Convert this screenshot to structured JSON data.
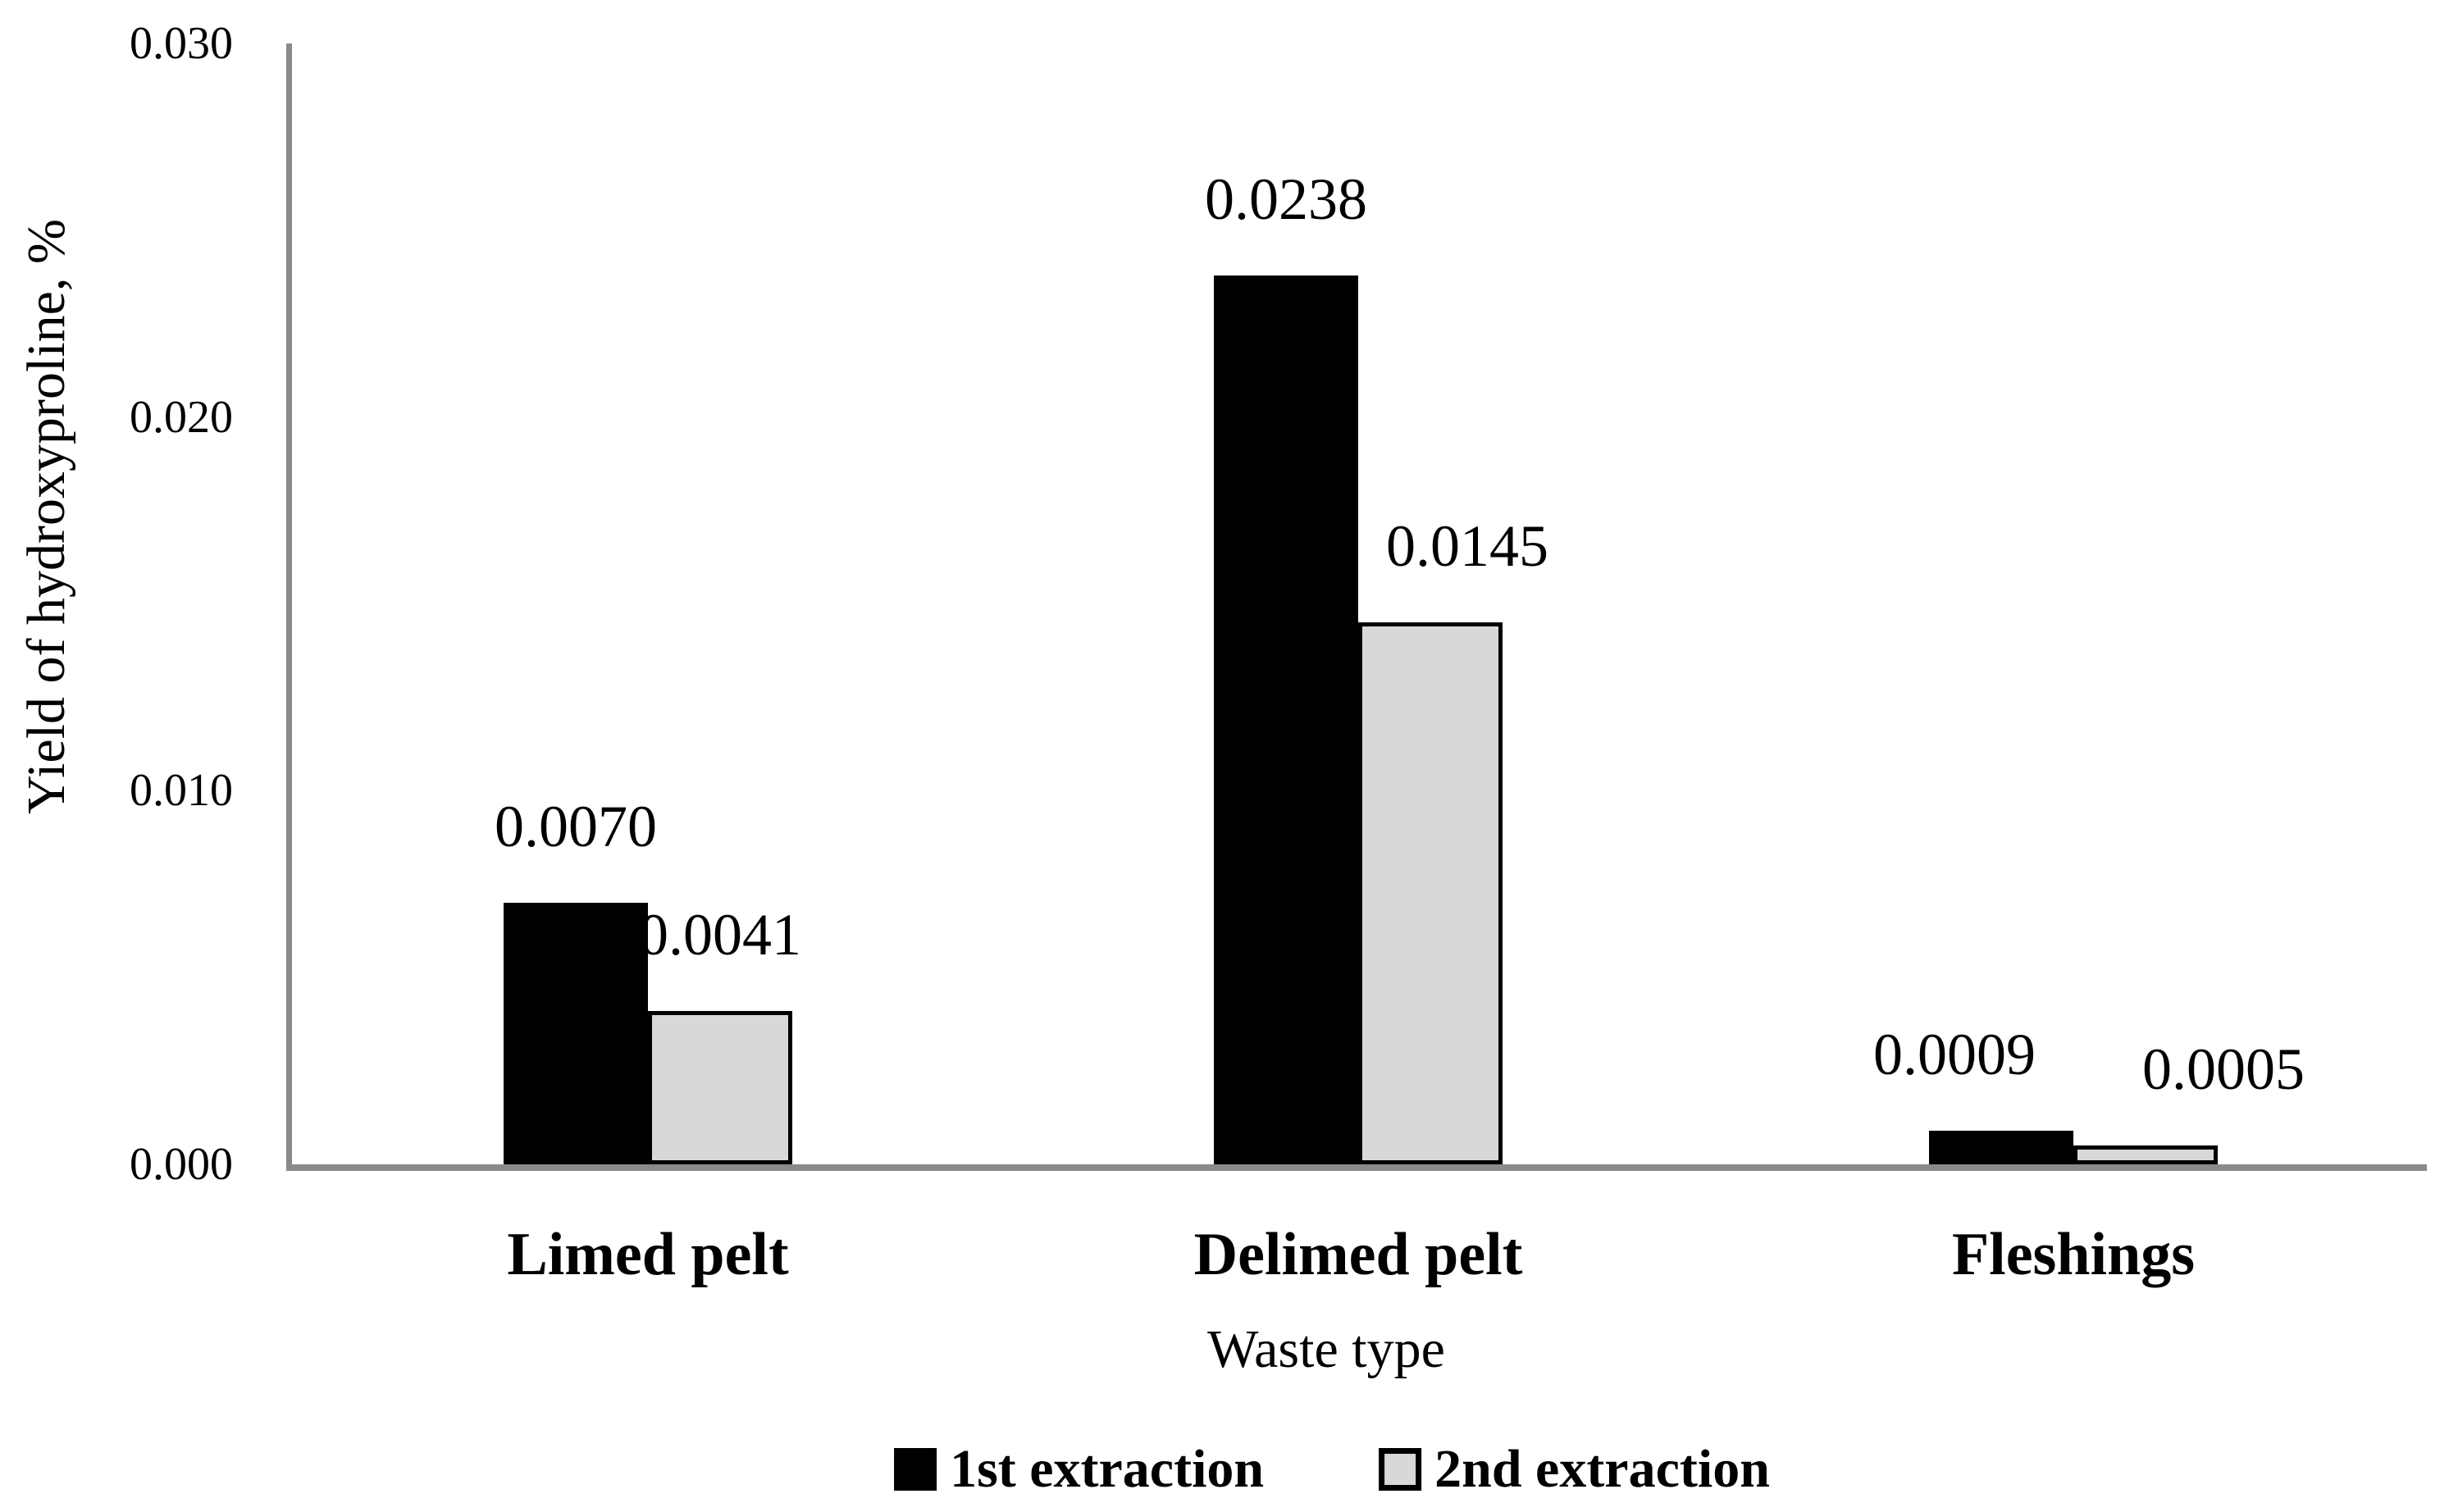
{
  "chart_data": {
    "type": "bar",
    "title": "",
    "categories": [
      "Limed pelt",
      "Delimed pelt",
      "Fleshings"
    ],
    "series": [
      {
        "name": "1st extraction",
        "color": "#000000",
        "values": [
          0.007,
          0.0238,
          0.0009
        ],
        "value_labels": [
          "0.0070",
          "0.0238",
          "0.0009"
        ]
      },
      {
        "name": "2nd extraction",
        "color": "#d8d8d8",
        "values": [
          0.0041,
          0.0145,
          0.0005
        ],
        "value_labels": [
          "0.0041",
          "0.0145",
          "0.0005"
        ]
      }
    ],
    "xlabel": "Waste type",
    "ylabel": "Yield of hydroxyproline, %",
    "ylim": [
      0,
      0.03
    ],
    "ytick_labels": [
      "0.000",
      "0.010",
      "0.020",
      "0.030"
    ],
    "ytick_values": [
      0.0,
      0.01,
      0.02,
      0.03
    ],
    "grid": false,
    "legend_position": "bottom",
    "axis_color": "#8a8a8a"
  }
}
